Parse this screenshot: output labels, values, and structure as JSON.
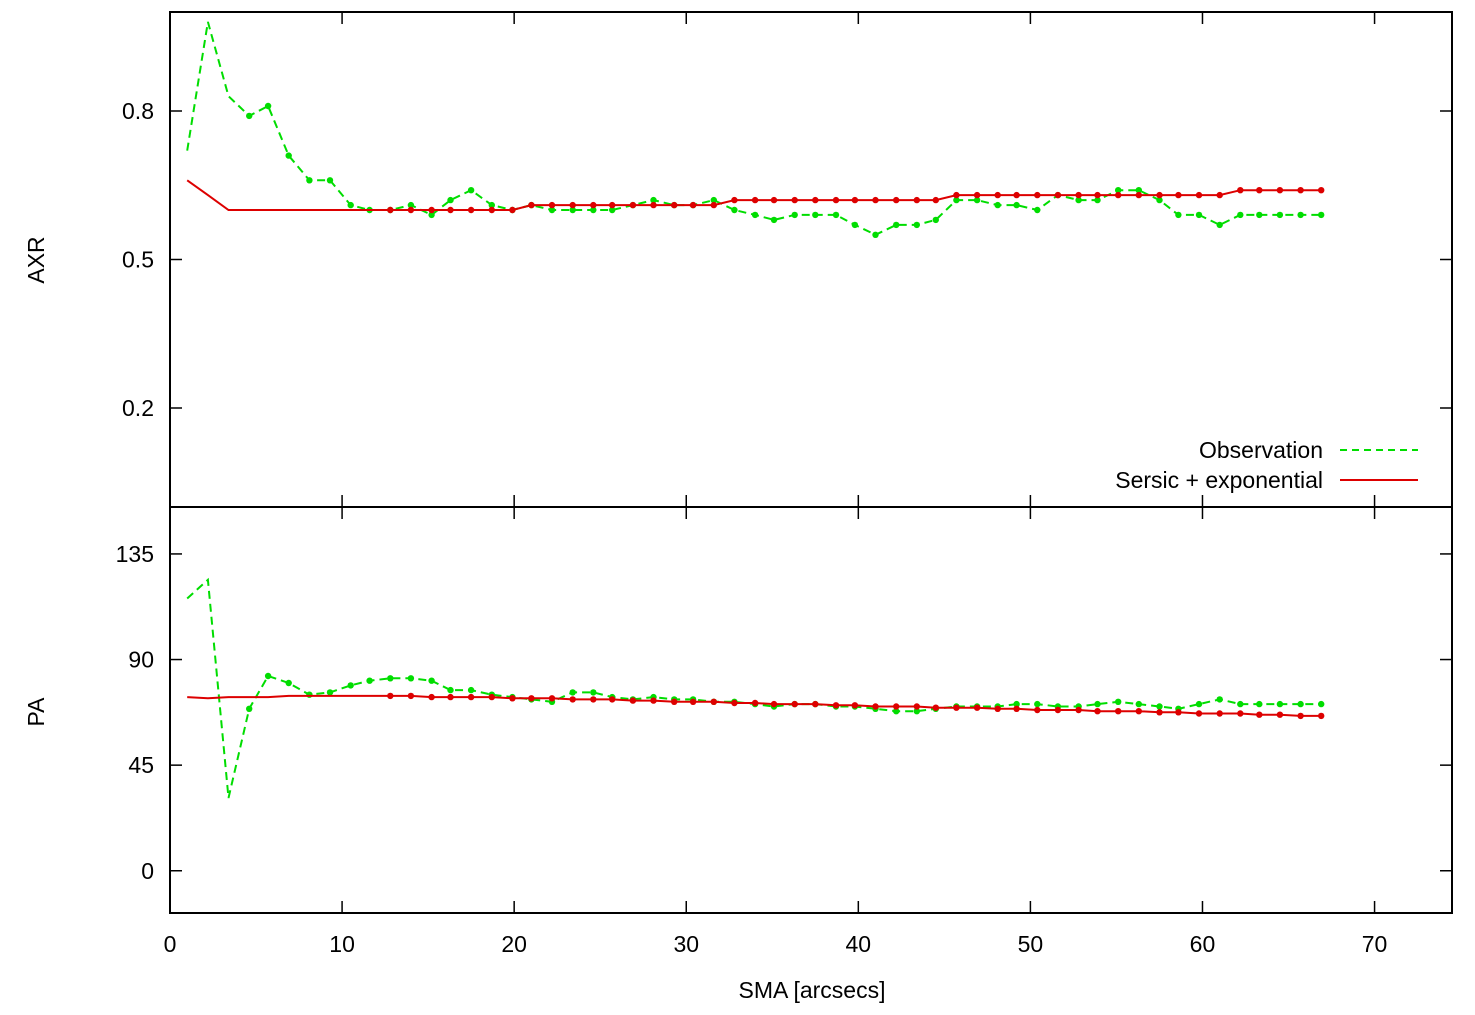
{
  "chart_data": {
    "type": "line",
    "xlabel": "SMA [arcsecs]",
    "xlim": [
      0,
      74.5
    ],
    "xticks": [
      0,
      10,
      20,
      30,
      40,
      50,
      60,
      70
    ],
    "legend": {
      "placement": "lower-right of top panel",
      "entries": [
        "Observation",
        "Sersic + exponential"
      ]
    },
    "colors": {
      "observation": "#00dd00",
      "model": "#dd0000"
    },
    "panels": [
      {
        "ylabel": "AXR",
        "ylim": [
          0,
          1.0
        ],
        "yticks": [
          0.2,
          0.5,
          0.8
        ],
        "series": [
          {
            "name": "Observation",
            "style": "dashed",
            "x": [
              1.0,
              2.2,
              3.4,
              4.6,
              5.7,
              6.9,
              8.1,
              9.3,
              10.5,
              11.6,
              12.8,
              14.0,
              15.2,
              16.3,
              17.5,
              18.7,
              19.9,
              21.0,
              22.2,
              23.4,
              24.6,
              25.7,
              26.9,
              28.1,
              29.3,
              30.4,
              31.6,
              32.8,
              34.0,
              35.1,
              36.3,
              37.5,
              38.7,
              39.8,
              41.0,
              42.2,
              43.4,
              44.5,
              45.7,
              46.9,
              48.1,
              49.2,
              50.4,
              51.6,
              52.8,
              53.9,
              55.1,
              56.3,
              57.5,
              58.6,
              59.8,
              61.0,
              62.2,
              63.3,
              64.5,
              65.7,
              66.9
            ],
            "y": [
              0.72,
              0.98,
              0.83,
              0.79,
              0.81,
              0.71,
              0.66,
              0.66,
              0.61,
              0.6,
              0.6,
              0.61,
              0.59,
              0.62,
              0.64,
              0.61,
              0.6,
              0.61,
              0.6,
              0.6,
              0.6,
              0.6,
              0.61,
              0.62,
              0.61,
              0.61,
              0.62,
              0.6,
              0.59,
              0.58,
              0.59,
              0.59,
              0.59,
              0.57,
              0.55,
              0.57,
              0.57,
              0.58,
              0.62,
              0.62,
              0.61,
              0.61,
              0.6,
              0.63,
              0.62,
              0.62,
              0.64,
              0.64,
              0.62,
              0.59,
              0.59,
              0.57,
              0.59,
              0.59,
              0.59,
              0.59,
              0.59
            ],
            "markers_from_index": 3
          },
          {
            "name": "Sersic + exponential",
            "style": "solid",
            "x": [
              1.0,
              2.2,
              3.4,
              4.6,
              5.7,
              6.9,
              8.1,
              9.3,
              10.5,
              11.6,
              12.8,
              14.0,
              15.2,
              16.3,
              17.5,
              18.7,
              19.9,
              21.0,
              22.2,
              23.4,
              24.6,
              25.7,
              26.9,
              28.1,
              29.3,
              30.4,
              31.6,
              32.8,
              34.0,
              35.1,
              36.3,
              37.5,
              38.7,
              39.8,
              41.0,
              42.2,
              43.4,
              44.5,
              45.7,
              46.9,
              48.1,
              49.2,
              50.4,
              51.6,
              52.8,
              53.9,
              55.1,
              56.3,
              57.5,
              58.6,
              59.8,
              61.0,
              62.2,
              63.3,
              64.5,
              65.7,
              66.9
            ],
            "y": [
              0.66,
              0.63,
              0.6,
              0.6,
              0.6,
              0.6,
              0.6,
              0.6,
              0.6,
              0.6,
              0.6,
              0.6,
              0.6,
              0.6,
              0.6,
              0.6,
              0.6,
              0.61,
              0.61,
              0.61,
              0.61,
              0.61,
              0.61,
              0.61,
              0.61,
              0.61,
              0.61,
              0.62,
              0.62,
              0.62,
              0.62,
              0.62,
              0.62,
              0.62,
              0.62,
              0.62,
              0.62,
              0.62,
              0.63,
              0.63,
              0.63,
              0.63,
              0.63,
              0.63,
              0.63,
              0.63,
              0.63,
              0.63,
              0.63,
              0.63,
              0.63,
              0.63,
              0.64,
              0.64,
              0.64,
              0.64,
              0.64
            ],
            "markers_from_index": 10
          }
        ]
      },
      {
        "ylabel": "PA",
        "ylim": [
          -18,
          155
        ],
        "yticks": [
          0,
          45,
          90,
          135
        ],
        "series": [
          {
            "name": "Observation",
            "style": "dashed",
            "x": [
              1.0,
              2.2,
              3.4,
              4.6,
              5.7,
              6.9,
              8.1,
              9.3,
              10.5,
              11.6,
              12.8,
              14.0,
              15.2,
              16.3,
              17.5,
              18.7,
              19.9,
              21.0,
              22.2,
              23.4,
              24.6,
              25.7,
              26.9,
              28.1,
              29.3,
              30.4,
              31.6,
              32.8,
              34.0,
              35.1,
              36.3,
              37.5,
              38.7,
              39.8,
              41.0,
              42.2,
              43.4,
              44.5,
              45.7,
              46.9,
              48.1,
              49.2,
              50.4,
              51.6,
              52.8,
              53.9,
              55.1,
              56.3,
              57.5,
              58.6,
              59.8,
              61.0,
              62.2,
              63.3,
              64.5,
              65.7,
              66.9
            ],
            "y": [
              116,
              124,
              31,
              69,
              83,
              80,
              75,
              76,
              79,
              81,
              82,
              82,
              81,
              77,
              77,
              75,
              74,
              73,
              72,
              76,
              76,
              74,
              73,
              74,
              73,
              73,
              72,
              72,
              71,
              70,
              71,
              71,
              70,
              70,
              69,
              68,
              68,
              69,
              70,
              70,
              70,
              71,
              71,
              70,
              70,
              71,
              72,
              71,
              70,
              69,
              71,
              73,
              71,
              71,
              71,
              71,
              71
            ],
            "markers_from_index": 3
          },
          {
            "name": "Sersic + exponential",
            "style": "solid",
            "x": [
              1.0,
              2.2,
              3.4,
              4.6,
              5.7,
              6.9,
              8.1,
              9.3,
              10.5,
              11.6,
              12.8,
              14.0,
              15.2,
              16.3,
              17.5,
              18.7,
              19.9,
              21.0,
              22.2,
              23.4,
              24.6,
              25.7,
              26.9,
              28.1,
              29.3,
              30.4,
              31.6,
              32.8,
              34.0,
              35.1,
              36.3,
              37.5,
              38.7,
              39.8,
              41.0,
              42.2,
              43.4,
              44.5,
              45.7,
              46.9,
              48.1,
              49.2,
              50.4,
              51.6,
              52.8,
              53.9,
              55.1,
              56.3,
              57.5,
              58.6,
              59.8,
              61.0,
              62.2,
              63.3,
              64.5,
              65.7,
              66.9
            ],
            "y": [
              74,
              73.5,
              74,
              74,
              74,
              74.5,
              74.5,
              74.5,
              74.5,
              74.5,
              74.5,
              74.5,
              74,
              74,
              74,
              74,
              73.5,
              73.5,
              73.5,
              73,
              73,
              73,
              72.5,
              72.5,
              72,
              72,
              72,
              71.5,
              71.5,
              71,
              71,
              71,
              70.5,
              70.5,
              70,
              70,
              70,
              69.5,
              69.5,
              69.5,
              69,
              69,
              68.5,
              68.5,
              68.5,
              68,
              68,
              68,
              67.5,
              67.5,
              67,
              67,
              67,
              66.5,
              66.5,
              66,
              66
            ],
            "markers_from_index": 10
          }
        ]
      }
    ]
  }
}
